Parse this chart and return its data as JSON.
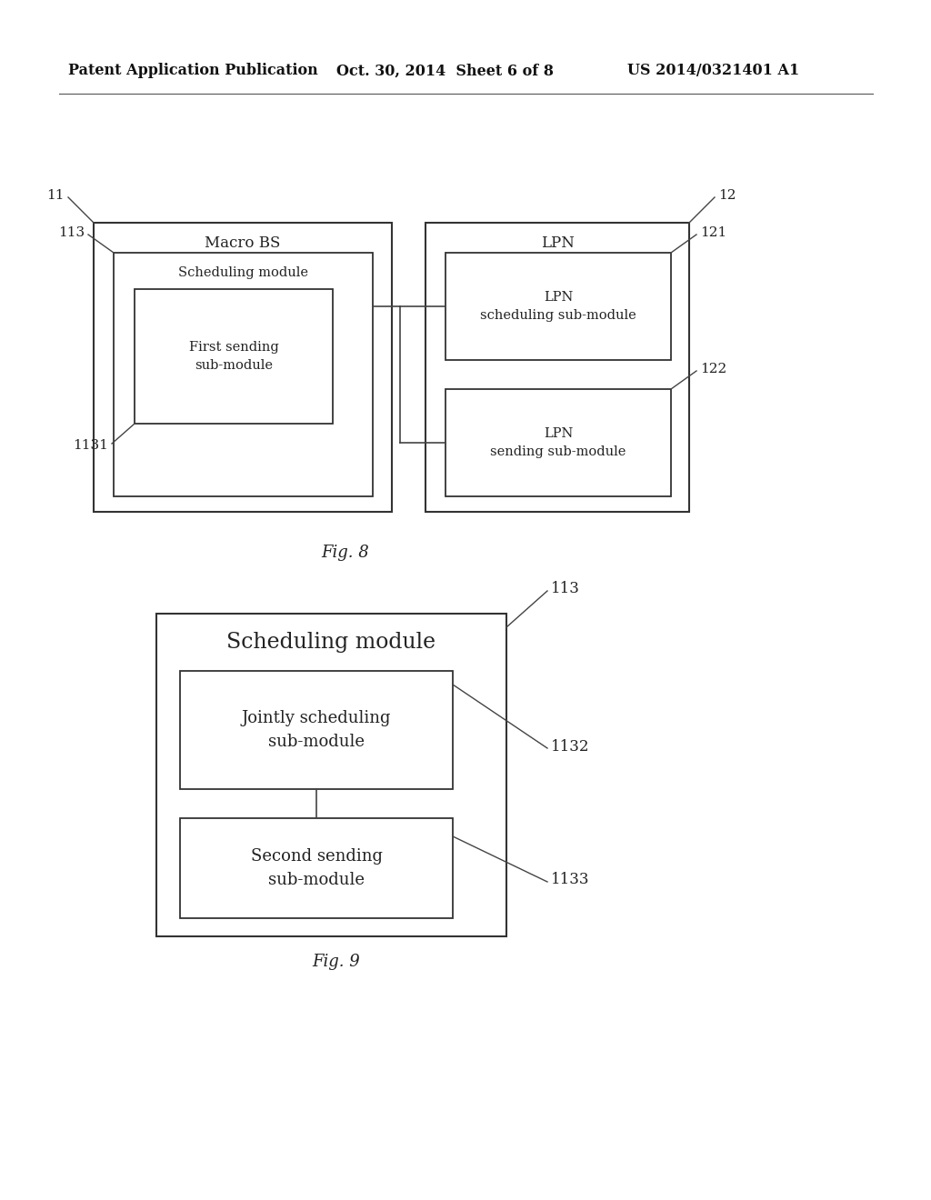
{
  "bg_color": "#ffffff",
  "header_left": "Patent Application Publication",
  "header_mid": "Oct. 30, 2014  Sheet 6 of 8",
  "header_right": "US 2014/0321401 A1",
  "fig8_caption": "Fig. 8",
  "fig9_caption": "Fig. 9",
  "fig8": {
    "macro_bs_label": "Macro BS",
    "lpn_label": "LPN",
    "sched_module_label": "Scheduling module",
    "first_sending_label": "First sending\nsub-module",
    "lpn_sched_label": "LPN\nscheduling sub-module",
    "lpn_sending_label": "LPN\nsending sub-module",
    "label_11": "11",
    "label_12": "12",
    "label_113": "113",
    "label_1131": "1131",
    "label_121": "121",
    "label_122": "122"
  },
  "fig9": {
    "sched_module_label": "Scheduling module",
    "jointly_label": "Jointly scheduling\nsub-module",
    "second_sending_label": "Second sending\nsub-module",
    "label_113": "113",
    "label_1132": "1132",
    "label_1133": "1133"
  }
}
